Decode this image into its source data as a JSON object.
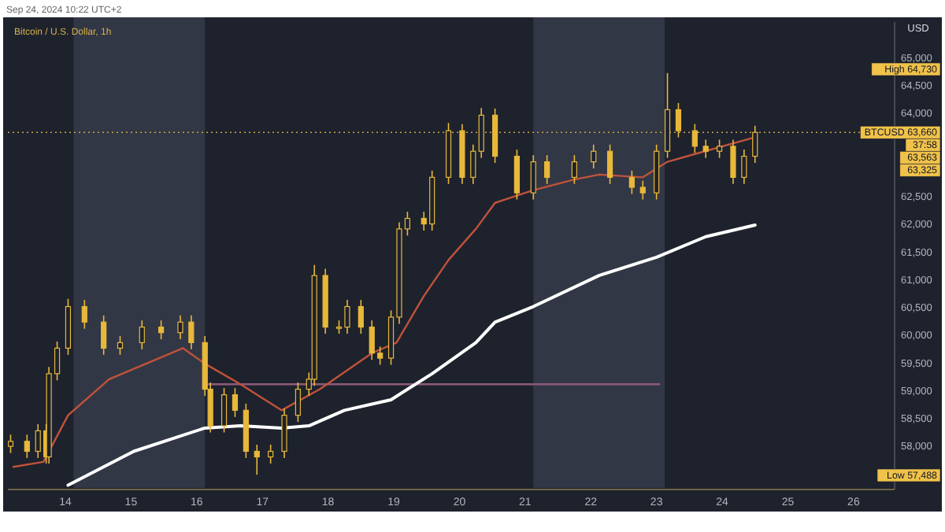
{
  "chart_data": {
    "type": "candlestick",
    "title": "Bitcoin / U.S. Dollar, 1h",
    "subtitle": "Sep 24, 2024 10:22 UTC+2",
    "ylabel": "USD",
    "xlim": [
      "2024-09-13T03:00",
      "2024-09-26T15:00"
    ],
    "xticks": [
      {
        "value": "2024-09-14",
        "label": "14"
      },
      {
        "value": "2024-09-15",
        "label": "15"
      },
      {
        "value": "2024-09-16",
        "label": "16"
      },
      {
        "value": "2024-09-17",
        "label": "17"
      },
      {
        "value": "2024-09-18",
        "label": "18"
      },
      {
        "value": "2024-09-19",
        "label": "19"
      },
      {
        "value": "2024-09-20",
        "label": "20"
      },
      {
        "value": "2024-09-21",
        "label": "21"
      },
      {
        "value": "2024-09-22",
        "label": "22"
      },
      {
        "value": "2024-09-23",
        "label": "23"
      },
      {
        "value": "2024-09-24",
        "label": "24"
      },
      {
        "value": "2024-09-25",
        "label": "25"
      },
      {
        "value": "2024-09-26",
        "label": "26"
      }
    ],
    "ylim": [
      57250,
      65650
    ],
    "yticks": [
      {
        "value": 58000,
        "label": "58,000"
      },
      {
        "value": 58500,
        "label": "58,500"
      },
      {
        "value": 59000,
        "label": "59,000"
      },
      {
        "value": 59500,
        "label": "59,500"
      },
      {
        "value": 60000,
        "label": "60,000"
      },
      {
        "value": 60500,
        "label": "60,500"
      },
      {
        "value": 61000,
        "label": "61,000"
      },
      {
        "value": 61500,
        "label": "61,500"
      },
      {
        "value": 62000,
        "label": "62,000"
      },
      {
        "value": 62500,
        "label": "62,500"
      },
      {
        "value": 64000,
        "label": "64,000"
      },
      {
        "value": 64500,
        "label": "64,500"
      },
      {
        "value": 65000,
        "label": "65,000"
      }
    ],
    "bands": [
      {
        "axis": "x",
        "from": "2024-09-14T03:00",
        "to": "2024-09-16T03:00",
        "color": "#323746"
      },
      {
        "axis": "x",
        "from": "2024-09-21T03:00",
        "to": "2024-09-23T03:00",
        "color": "#323746"
      }
    ],
    "ref_lines": [
      {
        "axis": "y",
        "value": 63660,
        "color": "#c9a646",
        "line_style": "dotted",
        "label": "BTCUSD 63,660"
      }
    ],
    "series": [
      {
        "type": "line",
        "color": "#8e5a7a",
        "x": [
          "2024-09-16T03:00",
          "2024-09-23T01:00"
        ],
        "values": [
          59120,
          59120
        ]
      },
      {
        "type": "line",
        "color": "#ffffff",
        "x": [
          "2024-09-14T01:00",
          "2024-09-15T01:00",
          "2024-09-16T03:00",
          "2024-09-16T16:00",
          "2024-09-17T07:00",
          "2024-09-17T17:00",
          "2024-09-18T06:00",
          "2024-09-18T23:00",
          "2024-09-19T14:00",
          "2024-09-20T06:00",
          "2024-09-20T13:00",
          "2024-09-21T03:00",
          "2024-09-22T03:00",
          "2024-09-23T00:00",
          "2024-09-23T18:00",
          "2024-09-24T12:00"
        ],
        "values": [
          57300,
          57910,
          58330,
          58370,
          58330,
          58370,
          58650,
          58840,
          59310,
          59870,
          60240,
          60520,
          61080,
          61410,
          61780,
          61990
        ]
      },
      {
        "type": "line",
        "color": "#c0533a",
        "x": [
          "2024-09-13T05:00",
          "2024-09-13T16:00",
          "2024-09-14T01:00",
          "2024-09-14T16:00",
          "2024-09-15T19:00",
          "2024-09-16T03:00",
          "2024-09-16T16:00",
          "2024-09-17T07:00",
          "2024-09-17T21:00",
          "2024-09-18T16:00",
          "2024-09-19T01:00",
          "2024-09-19T11:00",
          "2024-09-19T20:00",
          "2024-09-20T06:00",
          "2024-09-20T13:00",
          "2024-09-21T03:00",
          "2024-09-21T18:00",
          "2024-09-22T03:00",
          "2024-09-22T19:00",
          "2024-09-23T04:00",
          "2024-09-23T14:00",
          "2024-09-24T11:00"
        ],
        "values": [
          57630,
          57720,
          58560,
          59210,
          59770,
          59490,
          59120,
          58650,
          59030,
          59680,
          59870,
          60710,
          61360,
          61920,
          62390,
          62620,
          62810,
          62900,
          62850,
          63130,
          63270,
          63560
        ]
      },
      {
        "type": "candlestick",
        "color": "#e8b83a",
        "x": [
          "2024-09-13T04:00",
          "2024-09-13T10:00",
          "2024-09-13T14:00",
          "2024-09-13T17:00",
          "2024-09-13T18:00",
          "2024-09-13T21:00",
          "2024-09-14T01:00",
          "2024-09-14T07:00",
          "2024-09-14T14:00",
          "2024-09-14T20:00",
          "2024-09-15T04:00",
          "2024-09-15T11:00",
          "2024-09-15T18:00",
          "2024-09-15T22:00",
          "2024-09-16T03:00",
          "2024-09-16T05:00",
          "2024-09-16T10:00",
          "2024-09-16T14:00",
          "2024-09-16T18:00",
          "2024-09-16T22:00",
          "2024-09-17T03:00",
          "2024-09-17T08:00",
          "2024-09-17T13:00",
          "2024-09-17T17:00",
          "2024-09-17T19:00",
          "2024-09-17T23:00",
          "2024-09-18T04:00",
          "2024-09-18T07:00",
          "2024-09-18T12:00",
          "2024-09-18T16:00",
          "2024-09-18T19:00",
          "2024-09-18T23:00",
          "2024-09-19T02:00",
          "2024-09-19T05:00",
          "2024-09-19T11:00",
          "2024-09-19T14:00",
          "2024-09-19T20:00",
          "2024-09-20T01:00",
          "2024-09-20T05:00",
          "2024-09-20T08:00",
          "2024-09-20T13:00",
          "2024-09-20T21:00",
          "2024-09-21T03:00",
          "2024-09-21T08:00",
          "2024-09-21T18:00",
          "2024-09-22T01:00",
          "2024-09-22T07:00",
          "2024-09-22T15:00",
          "2024-09-22T19:00",
          "2024-09-23T00:00",
          "2024-09-23T04:00",
          "2024-09-23T08:00",
          "2024-09-23T14:00",
          "2024-09-23T18:00",
          "2024-09-23T23:00",
          "2024-09-24T04:00",
          "2024-09-24T08:00",
          "2024-09-24T12:00"
        ],
        "ohlc": [
          [
            58000,
            58210,
            57880,
            58090
          ],
          [
            58090,
            58210,
            57790,
            57910
          ],
          [
            57910,
            58400,
            57790,
            58280
          ],
          [
            58280,
            58400,
            57690,
            57810
          ],
          [
            57810,
            59430,
            57690,
            59310
          ],
          [
            59310,
            59890,
            59190,
            59770
          ],
          [
            59770,
            60660,
            59650,
            60520
          ],
          [
            60520,
            60640,
            60120,
            60240
          ],
          [
            60240,
            60360,
            59650,
            59770
          ],
          [
            59770,
            59990,
            59650,
            59870
          ],
          [
            59870,
            60270,
            59750,
            60150
          ],
          [
            60150,
            60270,
            59930,
            60050
          ],
          [
            60050,
            60360,
            59930,
            60240
          ],
          [
            60240,
            60360,
            59750,
            59870
          ],
          [
            59870,
            59990,
            58910,
            59030
          ],
          [
            59030,
            59150,
            58250,
            58370
          ],
          [
            58370,
            59050,
            58250,
            58930
          ],
          [
            58930,
            59050,
            58530,
            58650
          ],
          [
            58650,
            58770,
            57790,
            57910
          ],
          [
            57910,
            58030,
            57488,
            57810
          ],
          [
            57810,
            58030,
            57690,
            57910
          ],
          [
            57910,
            58680,
            57790,
            58560
          ],
          [
            58560,
            59150,
            58440,
            59030
          ],
          [
            59030,
            59330,
            58910,
            59210
          ],
          [
            59210,
            61270,
            59090,
            61080
          ],
          [
            61080,
            61200,
            60030,
            60150
          ],
          [
            60150,
            60270,
            60030,
            60150
          ],
          [
            60150,
            60640,
            60030,
            60520
          ],
          [
            60520,
            60640,
            60030,
            60150
          ],
          [
            60150,
            60270,
            59560,
            59680
          ],
          [
            59680,
            59800,
            59470,
            59590
          ],
          [
            59590,
            60450,
            59470,
            60330
          ],
          [
            60330,
            62040,
            60210,
            61920
          ],
          [
            61920,
            62230,
            61800,
            62110
          ],
          [
            62110,
            62230,
            61890,
            62010
          ],
          [
            62010,
            62970,
            61890,
            62850
          ],
          [
            62850,
            63830,
            62730,
            63690
          ],
          [
            63690,
            63810,
            62730,
            62850
          ],
          [
            62850,
            63440,
            62730,
            63320
          ],
          [
            63320,
            64100,
            63200,
            63970
          ],
          [
            63970,
            64090,
            63110,
            63230
          ],
          [
            63230,
            63350,
            62450,
            62570
          ],
          [
            62570,
            63250,
            62450,
            63130
          ],
          [
            63130,
            63250,
            62730,
            62850
          ],
          [
            62850,
            63250,
            62730,
            63130
          ],
          [
            63130,
            63440,
            63010,
            63320
          ],
          [
            63320,
            63440,
            62730,
            62850
          ],
          [
            62850,
            62970,
            62550,
            62670
          ],
          [
            62670,
            62790,
            62450,
            62570
          ],
          [
            62570,
            63440,
            62450,
            63320
          ],
          [
            63320,
            64730,
            63200,
            64070
          ],
          [
            64070,
            64190,
            63570,
            63690
          ],
          [
            63690,
            63810,
            63290,
            63410
          ],
          [
            63410,
            63530,
            63200,
            63320
          ],
          [
            63320,
            63530,
            63200,
            63410
          ],
          [
            63410,
            63530,
            62730,
            62850
          ],
          [
            62850,
            63350,
            62730,
            63230
          ],
          [
            63230,
            63780,
            63110,
            63660
          ]
        ]
      }
    ],
    "annotations": [
      "High 64,730",
      "37:58",
      "63,563",
      "63,325",
      "Low 57,488"
    ]
  }
}
